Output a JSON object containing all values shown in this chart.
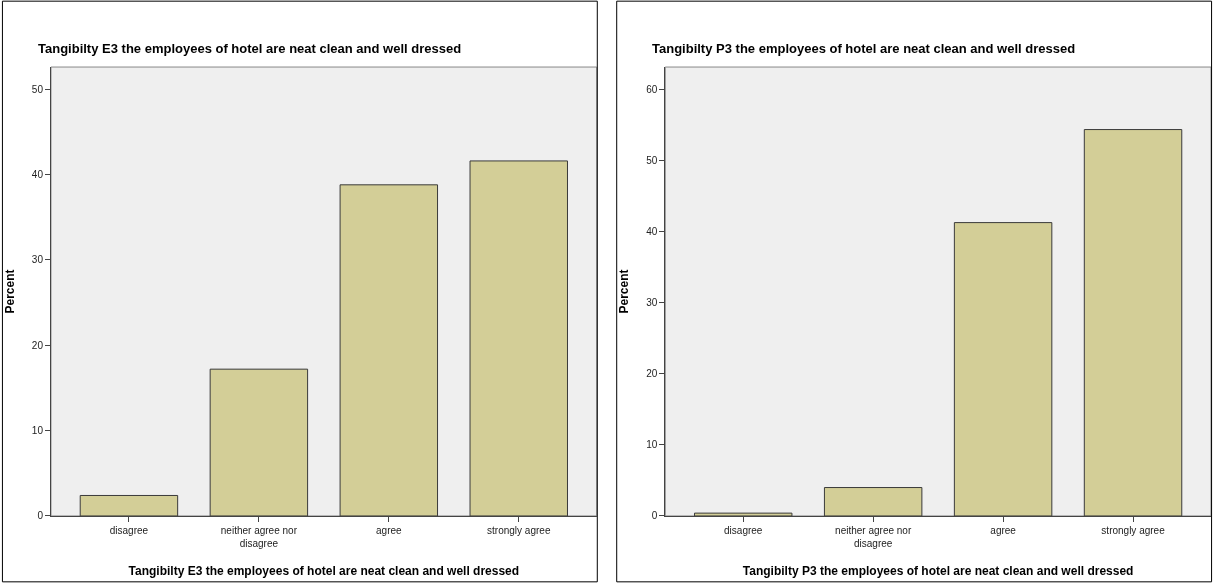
{
  "chart_data": [
    {
      "type": "bar",
      "title": "Tangibilty E3 the employees of hotel are neat clean and well dressed",
      "xlabel": "Tangibilty E3 the employees of hotel are neat clean and well dressed",
      "ylabel": "Percent",
      "categories": [
        "disagree",
        "neither agree nor disagree",
        "agree",
        "strongly agree"
      ],
      "values": [
        2.4,
        17.2,
        38.8,
        41.6
      ],
      "color": "#d3ce97",
      "ylim": [
        0,
        52.6
      ],
      "yticks": [
        0,
        10,
        20,
        30,
        40,
        50
      ]
    },
    {
      "type": "bar",
      "title": "Tangibilty P3 the employees of hotel are neat clean and well dressed",
      "xlabel": "Tangibilty P3 the employees of hotel are neat clean and well dressed",
      "ylabel": "Percent",
      "categories": [
        "disagree",
        "neither agree nor disagree",
        "agree",
        "strongly agree"
      ],
      "values": [
        0.4,
        4.0,
        41.3,
        54.4
      ],
      "color": "#d3ce97",
      "ylim": [
        0,
        63.2
      ],
      "yticks": [
        0,
        10,
        20,
        30,
        40,
        50,
        60
      ]
    }
  ]
}
